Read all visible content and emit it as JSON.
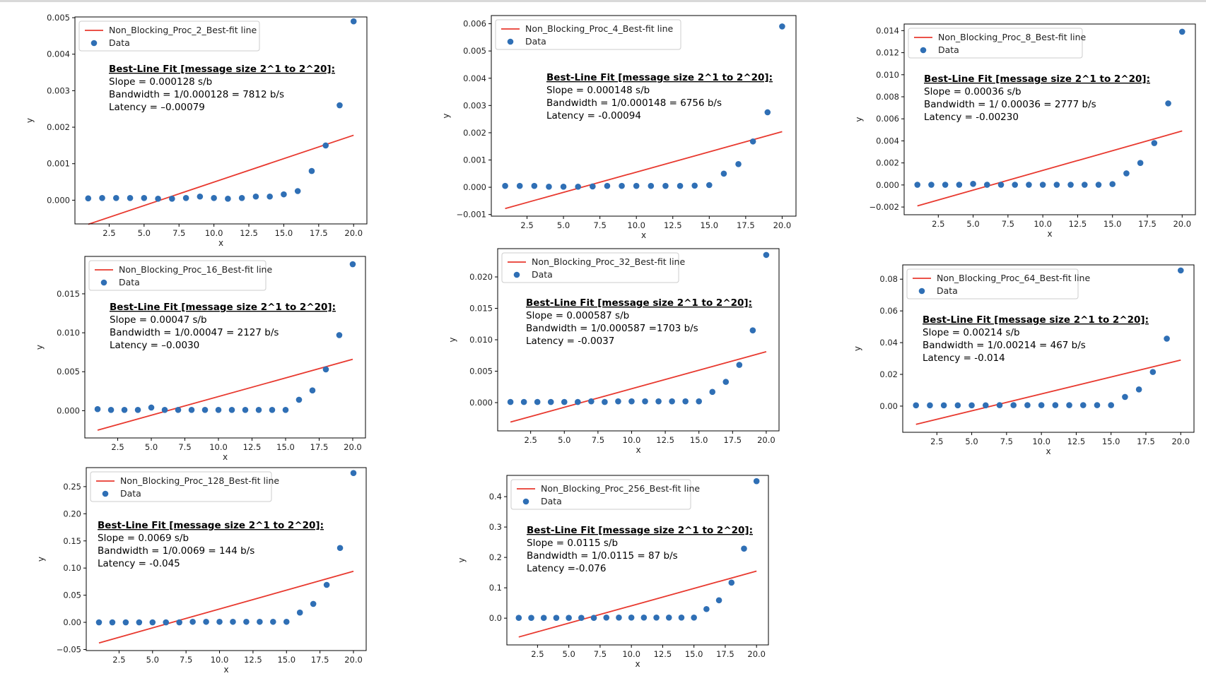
{
  "style": {
    "line_color": "#e8392f",
    "point_color": "#2f6fb5"
  },
  "chart_data": [
    {
      "type": "scatter",
      "legend": [
        "Non_Blocking_Proc_2_Best-fit line",
        "Data"
      ],
      "legend_placement": "top-left",
      "xlabel": "x",
      "ylabel": "y",
      "xlim": [
        0.05,
        20.95
      ],
      "ylim": [
        -0.00065,
        0.00502
      ],
      "xticks": [
        2.5,
        5.0,
        7.5,
        10.0,
        12.5,
        15.0,
        17.5,
        20.0
      ],
      "xtick_labels": [
        "2.5",
        "5.0",
        "7.5",
        "10.0",
        "12.5",
        "15.0",
        "17.5",
        "20.0"
      ],
      "yticks": [
        0.0,
        0.001,
        0.002,
        0.003,
        0.004,
        0.005
      ],
      "ytick_labels": [
        "0.000",
        "0.001",
        "0.002",
        "0.003",
        "0.004",
        "0.005"
      ],
      "x": [
        1,
        2,
        3,
        4,
        5,
        6,
        7,
        8,
        9,
        10,
        11,
        12,
        13,
        14,
        15,
        16,
        17,
        18,
        19,
        20
      ],
      "y": [
        5e-05,
        6e-05,
        6e-05,
        6e-05,
        6e-05,
        4e-05,
        4e-05,
        6e-05,
        0.0001,
        6e-05,
        4e-05,
        6e-05,
        0.0001,
        0.0001,
        0.00016,
        0.00025,
        0.0008,
        0.0015,
        0.0026,
        0.0049
      ],
      "fit_line": {
        "x": [
          1,
          20
        ],
        "y": [
          -0.00066,
          0.00178
        ]
      },
      "annotation": {
        "heading": "Best-Line Fit [message size 2^1 to 2^20]:",
        "lines": [
          "Slope =  0.000128  s/b",
          "Bandwidth = 1/0.000128 =  7812 b/s",
          "Latency = –0.00079"
        ]
      }
    },
    {
      "type": "scatter",
      "legend": [
        "Non_Blocking_Proc_4_Best-fit line",
        "Data"
      ],
      "legend_placement": "top-left",
      "xlabel": "x",
      "ylabel": "y",
      "xlim": [
        0.05,
        20.95
      ],
      "ylim": [
        -0.00106,
        0.0063
      ],
      "xticks": [
        2.5,
        5.0,
        7.5,
        10.0,
        12.5,
        15.0,
        17.5,
        20.0
      ],
      "xtick_labels": [
        "2.5",
        "5.0",
        "7.5",
        "10.0",
        "12.5",
        "15.0",
        "17.5",
        "20.0"
      ],
      "yticks": [
        -0.001,
        0.0,
        0.001,
        0.002,
        0.003,
        0.004,
        0.005,
        0.006
      ],
      "ytick_labels": [
        "−0.001",
        "0.000",
        "0.001",
        "0.002",
        "0.003",
        "0.004",
        "0.005",
        "0.006"
      ],
      "x": [
        1,
        2,
        3,
        4,
        5,
        6,
        7,
        8,
        9,
        10,
        11,
        12,
        13,
        14,
        15,
        16,
        17,
        18,
        19,
        20
      ],
      "y": [
        5e-05,
        5e-05,
        5e-05,
        2e-05,
        2e-05,
        2e-05,
        3e-05,
        5e-05,
        5e-05,
        5e-05,
        5e-05,
        5e-05,
        5e-05,
        6e-05,
        8e-05,
        0.0005,
        0.00085,
        0.00168,
        0.00275,
        0.0059
      ],
      "fit_line": {
        "x": [
          1,
          20
        ],
        "y": [
          -0.00078,
          0.00204
        ]
      },
      "annotation": {
        "heading": "Best-Line Fit [message size 2^1 to 2^20]:",
        "lines": [
          "Slope =  0.000148  s/b",
          "Bandwidth = 1/0.000148 = 6756 b/s",
          "Latency = -0.00094"
        ]
      }
    },
    {
      "type": "scatter",
      "legend": [
        "Non_Blocking_Proc_8_Best-fit line",
        "Data"
      ],
      "legend_placement": "top-left",
      "xlabel": "x",
      "ylabel": "y",
      "xlim": [
        0.05,
        20.95
      ],
      "ylim": [
        -0.0027,
        0.0146
      ],
      "xticks": [
        2.5,
        5.0,
        7.5,
        10.0,
        12.5,
        15.0,
        17.5,
        20.0
      ],
      "xtick_labels": [
        "2.5",
        "5.0",
        "7.5",
        "10.0",
        "12.5",
        "15.0",
        "17.5",
        "20.0"
      ],
      "yticks": [
        -0.002,
        0.0,
        0.002,
        0.004,
        0.006,
        0.008,
        0.01,
        0.012,
        0.014
      ],
      "ytick_labels": [
        "−0.002",
        "0.000",
        "0.002",
        "0.004",
        "0.006",
        "0.008",
        "0.010",
        "0.012",
        "0.014"
      ],
      "x": [
        1,
        2,
        3,
        4,
        5,
        6,
        7,
        8,
        9,
        10,
        11,
        12,
        13,
        14,
        15,
        16,
        17,
        18,
        19,
        20
      ],
      "y": [
        2e-05,
        2e-05,
        2e-05,
        2e-05,
        0.0001,
        2e-05,
        2e-05,
        2e-05,
        2e-05,
        2e-05,
        2e-05,
        2e-05,
        2e-05,
        2e-05,
        8e-05,
        0.00105,
        0.002,
        0.0038,
        0.0074,
        0.0139
      ],
      "fit_line": {
        "x": [
          1,
          20
        ],
        "y": [
          -0.0019,
          0.0049
        ]
      },
      "annotation": {
        "heading": "Best-Line Fit [message size 2^1 to 2^20]:",
        "lines": [
          "Slope =   0.00036  s/b",
          "Bandwidth = 1/ 0.00036 = 2777 b/s",
          "Latency =  -0.00230"
        ]
      }
    },
    {
      "type": "scatter",
      "legend": [
        "Non_Blocking_Proc_16_Best-fit line",
        "Data"
      ],
      "legend_placement": "top-left",
      "xlabel": "x",
      "ylabel": "y",
      "xlim": [
        0.05,
        20.95
      ],
      "ylim": [
        -0.0035,
        0.0198
      ],
      "xticks": [
        2.5,
        5.0,
        7.5,
        10.0,
        12.5,
        15.0,
        17.5,
        20.0
      ],
      "xtick_labels": [
        "2.5",
        "5.0",
        "7.5",
        "10.0",
        "12.5",
        "15.0",
        "17.5",
        "20.0"
      ],
      "yticks": [
        0.0,
        0.005,
        0.01,
        0.015
      ],
      "ytick_labels": [
        "0.000",
        "0.005",
        "0.010",
        "0.015"
      ],
      "x": [
        1,
        2,
        3,
        4,
        5,
        6,
        7,
        8,
        9,
        10,
        11,
        12,
        13,
        14,
        15,
        16,
        17,
        18,
        19,
        20
      ],
      "y": [
        0.0002,
        0.0001,
        0.0001,
        0.0001,
        0.0004,
        0.0001,
        0.0001,
        0.0001,
        0.0001,
        0.0001,
        0.0001,
        0.0001,
        0.0001,
        0.0001,
        0.0001,
        0.0014,
        0.0026,
        0.0053,
        0.0097,
        0.0188
      ],
      "fit_line": {
        "x": [
          1,
          20
        ],
        "y": [
          -0.0025,
          0.0066
        ]
      },
      "annotation": {
        "heading": "Best-Line Fit [message size 2^1 to 2^20]:",
        "lines": [
          "Slope =  0.00047  s/b",
          "Bandwidth = 1/0.00047 = 2127 b/s",
          "Latency = –0.0030"
        ]
      }
    },
    {
      "type": "scatter",
      "legend": [
        "Non_Blocking_Proc_32_Best-fit line",
        "Data"
      ],
      "legend_placement": "top-left",
      "xlabel": "x",
      "ylabel": "y",
      "xlim": [
        0.05,
        20.95
      ],
      "ylim": [
        -0.0045,
        0.0245
      ],
      "xticks": [
        2.5,
        5.0,
        7.5,
        10.0,
        12.5,
        15.0,
        17.5,
        20.0
      ],
      "xtick_labels": [
        "2.5",
        "5.0",
        "7.5",
        "10.0",
        "12.5",
        "15.0",
        "17.5",
        "20.0"
      ],
      "yticks": [
        0.0,
        0.005,
        0.01,
        0.015,
        0.02
      ],
      "ytick_labels": [
        "0.000",
        "0.005",
        "0.010",
        "0.015",
        "0.020"
      ],
      "x": [
        1,
        2,
        3,
        4,
        5,
        6,
        7,
        8,
        9,
        10,
        11,
        12,
        13,
        14,
        15,
        16,
        17,
        18,
        19,
        20
      ],
      "y": [
        0.0001,
        0.0001,
        0.0001,
        0.0001,
        0.0001,
        0.0001,
        0.0002,
        0.0001,
        0.0002,
        0.0002,
        0.0002,
        0.0002,
        0.0002,
        0.0002,
        0.0002,
        0.0017,
        0.0033,
        0.006,
        0.0115,
        0.0235
      ],
      "fit_line": {
        "x": [
          1,
          20
        ],
        "y": [
          -0.0031,
          0.0081
        ]
      },
      "annotation": {
        "heading": "Best-Line Fit [message size 2^1 to 2^20]:",
        "lines": [
          "Slope =  0.000587  s/b",
          "Bandwidth = 1/0.000587 =1703 b/s",
          "Latency = -0.0037"
        ]
      }
    },
    {
      "type": "scatter",
      "legend": [
        "Non_Blocking_Proc_64_Best-fit line",
        "Data"
      ],
      "legend_placement": "top-left",
      "xlabel": "x",
      "ylabel": "y",
      "xlim": [
        0.05,
        20.95
      ],
      "ylim": [
        -0.0165,
        0.089
      ],
      "xticks": [
        2.5,
        5.0,
        7.5,
        10.0,
        12.5,
        15.0,
        17.5,
        20.0
      ],
      "xtick_labels": [
        "2.5",
        "5.0",
        "7.5",
        "10.0",
        "12.5",
        "15.0",
        "17.5",
        "20.0"
      ],
      "yticks": [
        0.0,
        0.02,
        0.04,
        0.06,
        0.08
      ],
      "ytick_labels": [
        "0.00",
        "0.02",
        "0.04",
        "0.06",
        "0.08"
      ],
      "x": [
        1,
        2,
        3,
        4,
        5,
        6,
        7,
        8,
        9,
        10,
        11,
        12,
        13,
        14,
        15,
        16,
        17,
        18,
        19,
        20
      ],
      "y": [
        0.0005,
        0.0005,
        0.0005,
        0.0005,
        0.0005,
        0.0005,
        0.0006,
        0.0006,
        0.0006,
        0.0006,
        0.0006,
        0.0006,
        0.0006,
        0.0006,
        0.0006,
        0.0058,
        0.0105,
        0.0215,
        0.0425,
        0.0855
      ],
      "fit_line": {
        "x": [
          1,
          20
        ],
        "y": [
          -0.0115,
          0.029
        ]
      },
      "annotation": {
        "heading": "Best-Line Fit [message size 2^1 to 2^20]:",
        "lines": [
          "Slope =  0.00214  s/b",
          "Bandwidth = 1/0.00214 =  467 b/s",
          "Latency = -0.014"
        ]
      }
    },
    {
      "type": "scatter",
      "legend": [
        "Non_Blocking_Proc_128_Best-fit line",
        "Data"
      ],
      "legend_placement": "top-left",
      "xlabel": "x",
      "ylabel": "y",
      "xlim": [
        0.05,
        20.95
      ],
      "ylim": [
        -0.052,
        0.285
      ],
      "xticks": [
        2.5,
        5.0,
        7.5,
        10.0,
        12.5,
        15.0,
        17.5,
        20.0
      ],
      "xtick_labels": [
        "2.5",
        "5.0",
        "7.5",
        "10.0",
        "12.5",
        "15.0",
        "17.5",
        "20.0"
      ],
      "yticks": [
        -0.05,
        0.0,
        0.05,
        0.1,
        0.15,
        0.2,
        0.25
      ],
      "ytick_labels": [
        "−0.05",
        "0.00",
        "0.05",
        "0.10",
        "0.15",
        "0.20",
        "0.25"
      ],
      "x": [
        1,
        2,
        3,
        4,
        5,
        6,
        7,
        8,
        9,
        10,
        11,
        12,
        13,
        14,
        15,
        16,
        17,
        18,
        19,
        20
      ],
      "y": [
        0.0,
        0.0,
        0.0,
        0.0,
        0.0,
        0.0,
        0.0,
        0.001,
        0.001,
        0.001,
        0.001,
        0.001,
        0.001,
        0.001,
        0.001,
        0.018,
        0.034,
        0.069,
        0.137,
        0.275
      ],
      "fit_line": {
        "x": [
          1,
          20
        ],
        "y": [
          -0.038,
          0.094
        ]
      },
      "annotation": {
        "heading": "Best-Line Fit [message size 2^1 to 2^20]:",
        "lines": [
          "Slope =  0.0069  s/b",
          "Bandwidth = 1/0.0069 =  144 b/s",
          "Latency = -0.045"
        ]
      }
    },
    {
      "type": "scatter",
      "legend": [
        "Non_Blocking_Proc_256_Best-fit line",
        "Data"
      ],
      "legend_placement": "top-left",
      "xlabel": "x",
      "ylabel": "y",
      "xlim": [
        0.05,
        20.95
      ],
      "ylim": [
        -0.088,
        0.47
      ],
      "xticks": [
        2.5,
        5.0,
        7.5,
        10.0,
        12.5,
        15.0,
        17.5,
        20.0
      ],
      "xtick_labels": [
        "2.5",
        "5.0",
        "7.5",
        "10.0",
        "12.5",
        "15.0",
        "17.5",
        "20.0"
      ],
      "yticks": [
        0.0,
        0.1,
        0.2,
        0.3,
        0.4
      ],
      "ytick_labels": [
        "0.0",
        "0.1",
        "0.2",
        "0.3",
        "0.4"
      ],
      "x": [
        1,
        2,
        3,
        4,
        5,
        6,
        7,
        8,
        9,
        10,
        11,
        12,
        13,
        14,
        15,
        16,
        17,
        18,
        19,
        20
      ],
      "y": [
        0.001,
        0.001,
        0.001,
        0.001,
        0.001,
        0.001,
        0.001,
        0.002,
        0.002,
        0.002,
        0.002,
        0.002,
        0.002,
        0.002,
        0.002,
        0.03,
        0.059,
        0.117,
        0.229,
        0.451
      ],
      "fit_line": {
        "x": [
          1,
          20
        ],
        "y": [
          -0.062,
          0.155
        ]
      },
      "annotation": {
        "heading": "Best-Line Fit [message size 2^1 to 2^20]:",
        "lines": [
          "Slope =   0.0115 s/b",
          "Bandwidth = 1/0.0115 = 87 b/s",
          "Latency =-0.076"
        ]
      }
    }
  ]
}
